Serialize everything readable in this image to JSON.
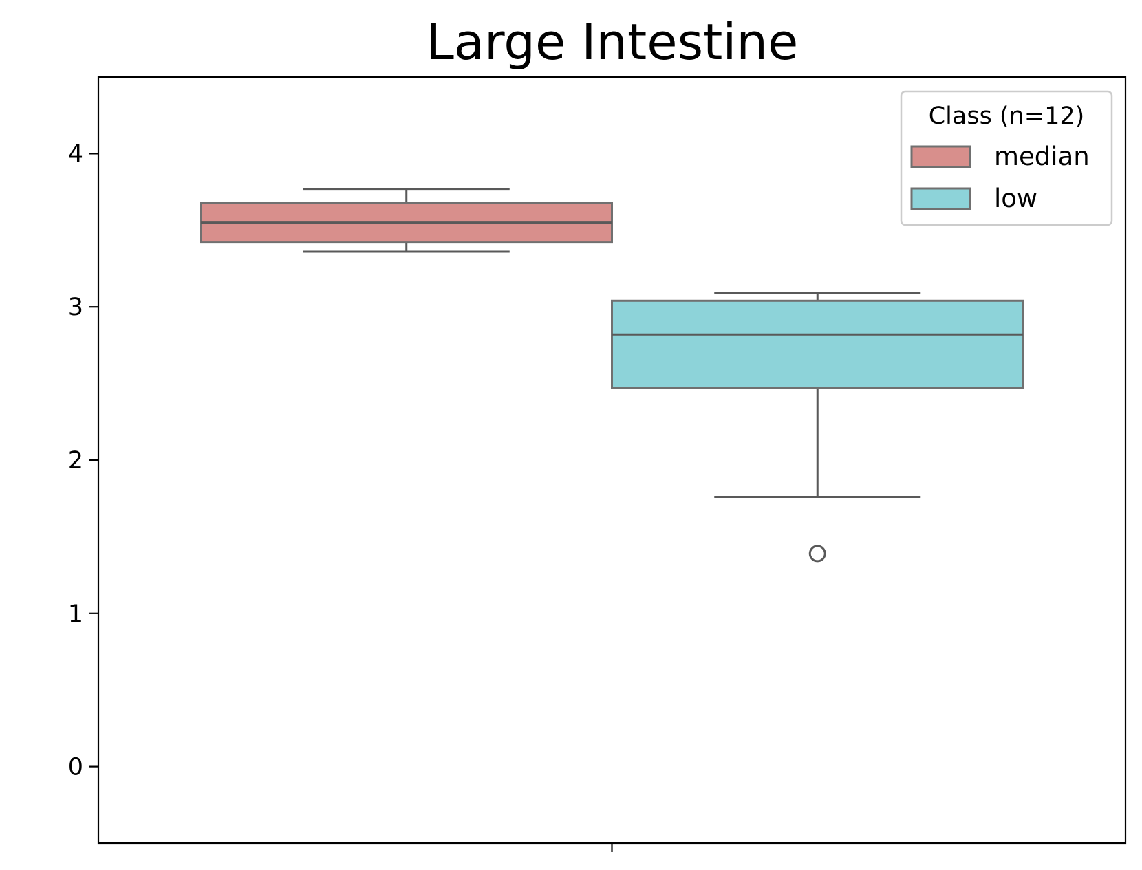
{
  "chart_data": {
    "type": "box",
    "title": "Large Intestine",
    "xlabel": "",
    "ylabel": "",
    "ylim": [
      -0.5,
      4.5
    ],
    "yticks": [
      0,
      1,
      2,
      3,
      4
    ],
    "grid": false,
    "legend": {
      "title": "Class (n=12)",
      "position": "top-right",
      "entries": [
        "median",
        "low"
      ]
    },
    "series": [
      {
        "name": "median",
        "color": "#d88f8c",
        "whisker_low": 3.36,
        "q1": 3.42,
        "median": 3.55,
        "q3": 3.68,
        "whisker_high": 3.77,
        "outliers": []
      },
      {
        "name": "low",
        "color": "#8dd3d9",
        "whisker_low": 1.76,
        "q1": 2.47,
        "median": 2.82,
        "q3": 3.04,
        "whisker_high": 3.09,
        "outliers": [
          1.39
        ]
      }
    ]
  }
}
